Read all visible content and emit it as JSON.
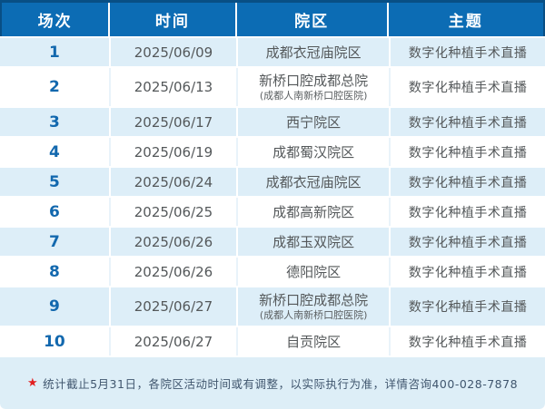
{
  "chart_data": {
    "type": "table",
    "title": "",
    "columns": [
      "场次",
      "时间",
      "院区",
      "主题"
    ],
    "rows": [
      {
        "session": "1",
        "date": "2025/06/09",
        "campus": "成都衣冠庙院区",
        "campus_sub": "",
        "topic": "数字化种植手术直播"
      },
      {
        "session": "2",
        "date": "2025/06/13",
        "campus": "新桥口腔成都总院",
        "campus_sub": "(成都人南新桥口腔医院)",
        "topic": "数字化种植手术直播"
      },
      {
        "session": "3",
        "date": "2025/06/17",
        "campus": "西宁院区",
        "campus_sub": "",
        "topic": "数字化种植手术直播"
      },
      {
        "session": "4",
        "date": "2025/06/19",
        "campus": "成都蜀汉院区",
        "campus_sub": "",
        "topic": "数字化种植手术直播"
      },
      {
        "session": "5",
        "date": "2025/06/24",
        "campus": "成都衣冠庙院区",
        "campus_sub": "",
        "topic": "数字化种植手术直播"
      },
      {
        "session": "6",
        "date": "2025/06/25",
        "campus": "成都高新院区",
        "campus_sub": "",
        "topic": "数字化种植手术直播"
      },
      {
        "session": "7",
        "date": "2025/06/26",
        "campus": "成都玉双院区",
        "campus_sub": "",
        "topic": "数字化种植手术直播"
      },
      {
        "session": "8",
        "date": "2025/06/26",
        "campus": "德阳院区",
        "campus_sub": "",
        "topic": "数字化种植手术直播"
      },
      {
        "session": "9",
        "date": "2025/06/27",
        "campus": "新桥口腔成都总院",
        "campus_sub": "(成都人南新桥口腔医院)",
        "topic": "数字化种植手术直播"
      },
      {
        "session": "10",
        "date": "2025/06/27",
        "campus": "自贡院区",
        "campus_sub": "",
        "topic": "数字化种植手术直播"
      }
    ]
  },
  "footer": {
    "star": "★",
    "note": "统计截止5月31日，各院区活动时间或有调整，以实际执行为准，详情咨询400-028-7878"
  },
  "colors": {
    "header_bg": "#0c6cb4",
    "header_border": "#084f85",
    "row_alt_bg": "#ddeef8",
    "row_bg": "#ffffff",
    "session_color": "#1268ae",
    "text_color": "#54585a",
    "footer_bg": "#ddeef7",
    "footer_text": "#40566e",
    "star_color": "#e21f1f"
  }
}
